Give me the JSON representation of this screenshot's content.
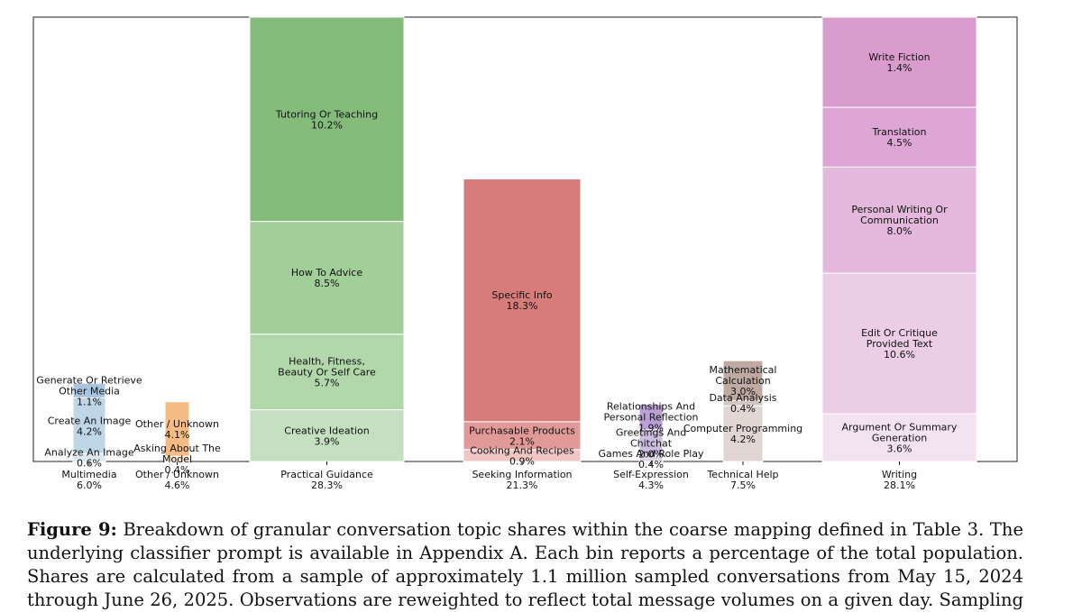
{
  "chart_data": {
    "type": "stacked_bar",
    "title": "",
    "xlabel": "",
    "ylabel": "",
    "ylim": [
      0,
      33.5
    ],
    "categories": [
      {
        "name": "Multimedia",
        "total": "6.0%",
        "color": "#a9c5de",
        "segments": [
          {
            "name": "Analyze An Image",
            "label_lines": [
              "Analyze An Image"
            ],
            "value": 0.6,
            "value_label": "0.6%",
            "color": "#dce8f2"
          },
          {
            "name": "Create An Image",
            "label_lines": [
              "Create An Image"
            ],
            "value": 4.2,
            "value_label": "4.2%",
            "color": "#bfd6e6"
          },
          {
            "name": "Generate Or Retrieve Other Media",
            "label_lines": [
              "Generate Or Retrieve",
              "Other Media"
            ],
            "value": 1.1,
            "value_label": "1.1%",
            "color": "#a9c5de"
          }
        ]
      },
      {
        "name": "Other / Unknown",
        "total": "4.6%",
        "color": "#f4bc84",
        "segments": [
          {
            "name": "Asking About The Model",
            "label_lines": [
              "Asking About The",
              "Model"
            ],
            "value": 0.4,
            "value_label": "0.4%",
            "color": "#fbe0c6"
          },
          {
            "name": "Other / Unknown",
            "label_lines": [
              "Other / Unknown"
            ],
            "value": 4.1,
            "value_label": "4.1%",
            "color": "#f4bc84"
          }
        ]
      },
      {
        "name": "Practical Guidance",
        "total": "28.3%",
        "color": "#84bb7b",
        "segments": [
          {
            "name": "Creative Ideation",
            "label_lines": [
              "Creative Ideation"
            ],
            "value": 3.9,
            "value_label": "3.9%",
            "color": "#c4e0c0"
          },
          {
            "name": "Health, Fitness, Beauty Or Self Care",
            "label_lines": [
              "Health, Fitness,",
              "Beauty Or Self Care"
            ],
            "value": 5.7,
            "value_label": "5.7%",
            "color": "#b2d7ab"
          },
          {
            "name": "How To Advice",
            "label_lines": [
              "How To Advice"
            ],
            "value": 8.5,
            "value_label": "8.5%",
            "color": "#a2cf99"
          },
          {
            "name": "Tutoring Or Teaching",
            "label_lines": [
              "Tutoring Or Teaching"
            ],
            "value": 10.2,
            "value_label": "10.2%",
            "color": "#84bb7b"
          }
        ]
      },
      {
        "name": "Seeking Information",
        "total": "21.3%",
        "color": "#d67c7a",
        "segments": [
          {
            "name": "Cooking And Recipes",
            "label_lines": [
              "Cooking And Recipes"
            ],
            "value": 0.9,
            "value_label": "0.9%",
            "color": "#efc6c4"
          },
          {
            "name": "Purchasable Products",
            "label_lines": [
              "Purchasable Products"
            ],
            "value": 2.1,
            "value_label": "2.1%",
            "color": "#e19a98"
          },
          {
            "name": "Specific Info",
            "label_lines": [
              "Specific Info"
            ],
            "value": 18.3,
            "value_label": "18.3%",
            "color": "#d67c7a"
          }
        ]
      },
      {
        "name": "Self-Expression",
        "total": "4.3%",
        "color": "#b9a1d6",
        "segments": [
          {
            "name": "Games And Role Play",
            "label_lines": [
              "Games And Role Play"
            ],
            "value": 0.4,
            "value_label": "0.4%",
            "color": "#e0d6ea"
          },
          {
            "name": "Greetings And Chitchat",
            "label_lines": [
              "Greetings And",
              "Chitchat"
            ],
            "value": 2.0,
            "value_label": "2.0%",
            "color": "#cdbde0"
          },
          {
            "name": "Relationships And Personal Reflection",
            "label_lines": [
              "Relationships And",
              "Personal Reflection"
            ],
            "value": 1.9,
            "value_label": "1.9%",
            "color": "#b9a1d6"
          }
        ]
      },
      {
        "name": "Technical Help",
        "total": "7.5%",
        "color": "#bfa9a3",
        "segments": [
          {
            "name": "Computer Programming",
            "label_lines": [
              "Computer Programming"
            ],
            "value": 4.2,
            "value_label": "4.2%",
            "color": "#e1d6d3"
          },
          {
            "name": "Data Analysis",
            "label_lines": [
              "Data Analysis"
            ],
            "value": 0.4,
            "value_label": "0.4%",
            "color": "#d5c7c2"
          },
          {
            "name": "Mathematical Calculation",
            "label_lines": [
              "Mathematical",
              "Calculation"
            ],
            "value": 3.0,
            "value_label": "3.0%",
            "color": "#bfa9a3"
          }
        ]
      },
      {
        "name": "Writing",
        "total": "28.1%",
        "color": "#dda0d2",
        "segments": [
          {
            "name": "Argument Or Summary Generation",
            "label_lines": [
              "Argument Or Summary",
              "Generation"
            ],
            "value": 3.6,
            "value_label": "3.6%",
            "color": "#f3e3f0"
          },
          {
            "name": "Edit Or Critique Provided Text",
            "label_lines": [
              "Edit Or Critique",
              "Provided Text"
            ],
            "value": 10.6,
            "value_label": "10.6%",
            "color": "#eccde6"
          },
          {
            "name": "Personal Writing Or Communication",
            "label_lines": [
              "Personal Writing Or",
              "Communication"
            ],
            "value": 8.0,
            "value_label": "8.0%",
            "color": "#e4b8dc"
          },
          {
            "name": "Translation",
            "label_lines": [
              "Translation"
            ],
            "value": 4.5,
            "value_label": "4.5%",
            "color": "#dda6d5"
          },
          {
            "name": "Write Fiction",
            "label_lines": [
              "Write Fiction"
            ],
            "value": 1.4,
            "value_label": "1.4%",
            "color": "#d99ccd"
          }
        ]
      }
    ]
  },
  "caption": {
    "figure_label": "Figure 9:",
    "line1": "Breakdown of granular conversation topic shares within the coarse mapping defined in Table 3. The",
    "line2": "underlying classifier prompt is available in Appendix A. Each bin reports a percentage of the total population.",
    "line3": "Shares are calculated from a sample of approximately 1.1 million sampled conversations from May 15, 2024",
    "line4": "through June 26, 2025. Observations are reweighted to reflect total message volumes on a given day. Sampling"
  }
}
